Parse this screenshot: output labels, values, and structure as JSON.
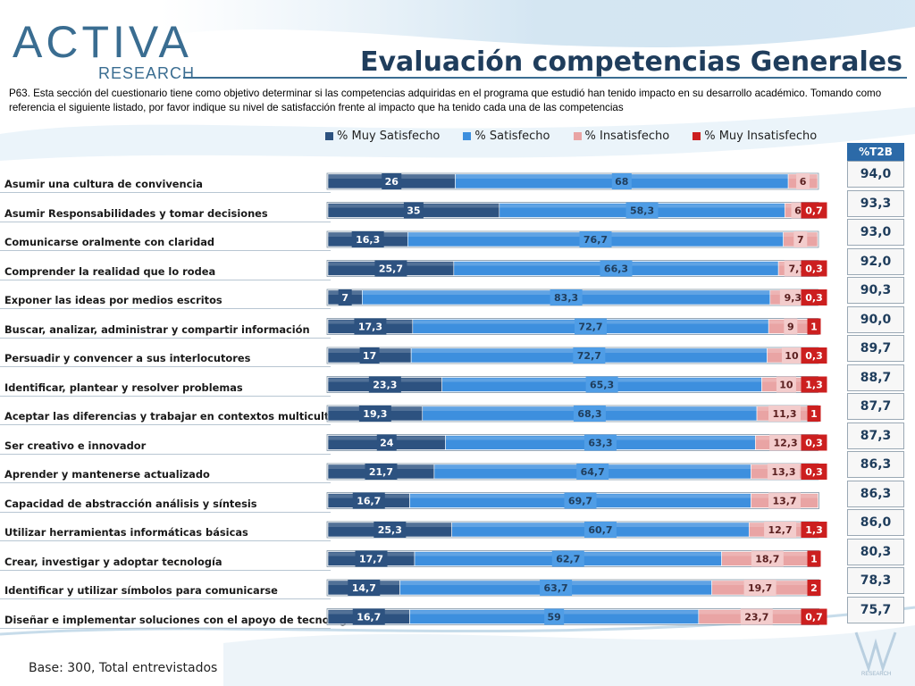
{
  "logo": {
    "main": "ACTIVA",
    "sub": "RESEARCH"
  },
  "title": "Evaluación competencias Generales",
  "question": "P63. Esta sección del cuestionario tiene como objetivo determinar si las competencias adquiridas en el programa que estudió han tenido impacto en su desarrollo académico. Tomando como referencia el siguiente listado, por favor indique su nivel de satisfacción frente al impacto que ha tenido cada una de las competencias",
  "base": "Base: 300, Total entrevistados",
  "t2b_header": "%T2B",
  "footer_mark": "RESEARCH",
  "colors": {
    "muy_satisfecho": "#2d5280",
    "satisfecho": "#3d8fde",
    "insatisfecho": "#e9a4a4",
    "muy_insatisfecho": "#cc1f1f"
  },
  "chart_data": {
    "type": "bar",
    "orientation": "horizontal",
    "stacked": true,
    "legend_position": "top",
    "series": [
      {
        "name": "% Muy Satisfecho",
        "values": [
          26,
          35,
          16.3,
          25.7,
          7,
          17.3,
          17,
          23.3,
          19.3,
          24,
          21.7,
          16.7,
          25.3,
          17.7,
          14.7,
          16.7
        ]
      },
      {
        "name": "% Satisfecho",
        "values": [
          68,
          58.3,
          76.7,
          66.3,
          83.3,
          72.7,
          72.7,
          65.3,
          68.3,
          63.3,
          64.7,
          69.7,
          60.7,
          62.7,
          63.7,
          59
        ]
      },
      {
        "name": "% Insatisfecho",
        "values": [
          6,
          6,
          7,
          7.7,
          9.3,
          9,
          10,
          10,
          11.3,
          12.3,
          13.3,
          13.7,
          12.7,
          18.7,
          19.7,
          23.7
        ]
      },
      {
        "name": "% Muy Insatisfecho",
        "values": [
          0,
          0.7,
          0,
          0.3,
          0.3,
          1,
          0.3,
          1.3,
          1,
          0.3,
          0.3,
          0,
          1.3,
          1,
          2,
          0.7
        ]
      }
    ],
    "labels": [
      [
        "26",
        "68",
        "6",
        ""
      ],
      [
        "35",
        "58,3",
        "6",
        "0,7"
      ],
      [
        "16,3",
        "76,7",
        "7",
        ""
      ],
      [
        "25,7",
        "66,3",
        "7,7",
        "0,3"
      ],
      [
        "7",
        "83,3",
        "9,3",
        "0,3"
      ],
      [
        "17,3",
        "72,7",
        "9",
        "1"
      ],
      [
        "17",
        "72,7",
        "10",
        "0,3"
      ],
      [
        "23,3",
        "65,3",
        "10",
        "1,3"
      ],
      [
        "19,3",
        "68,3",
        "11,3",
        "1"
      ],
      [
        "24",
        "63,3",
        "12,3",
        "0,3"
      ],
      [
        "21,7",
        "64,7",
        "13,3",
        "0,3"
      ],
      [
        "16,7",
        "69,7",
        "13,7",
        ""
      ],
      [
        "25,3",
        "60,7",
        "12,7",
        "1,3"
      ],
      [
        "17,7",
        "62,7",
        "18,7",
        "1"
      ],
      [
        "14,7",
        "63,7",
        "19,7",
        "2"
      ],
      [
        "16,7",
        "59",
        "23,7",
        "0,7"
      ]
    ],
    "categories": [
      "Asumir una cultura de convivencia",
      "Asumir Responsabilidades y tomar decisiones",
      "Comunicarse oralmente con claridad",
      "Comprender la realidad que lo rodea",
      "Exponer las ideas por medios escritos",
      "Buscar, analizar, administrar y compartir información",
      "Persuadir y convencer a sus interlocutores",
      "Identificar, plantear y resolver problemas",
      "Aceptar las diferencias y trabajar en contextos multiculturales",
      "Ser creativo e innovador",
      "Aprender y mantenerse actualizado",
      "Capacidad de abstracción análisis y síntesis",
      "Utilizar herramientas informáticas básicas",
      "Crear, investigar y adoptar tecnología",
      "Identificar y utilizar símbolos para comunicarse",
      "Diseñar e implementar soluciones con el apoyo de tecnología"
    ],
    "t2b": [
      "94,0",
      "93,3",
      "93,0",
      "92,0",
      "90,3",
      "90,0",
      "89,7",
      "88,7",
      "87,7",
      "87,3",
      "86,3",
      "86,3",
      "86,0",
      "80,3",
      "78,3",
      "75,7"
    ],
    "xlim": [
      0,
      100
    ]
  }
}
